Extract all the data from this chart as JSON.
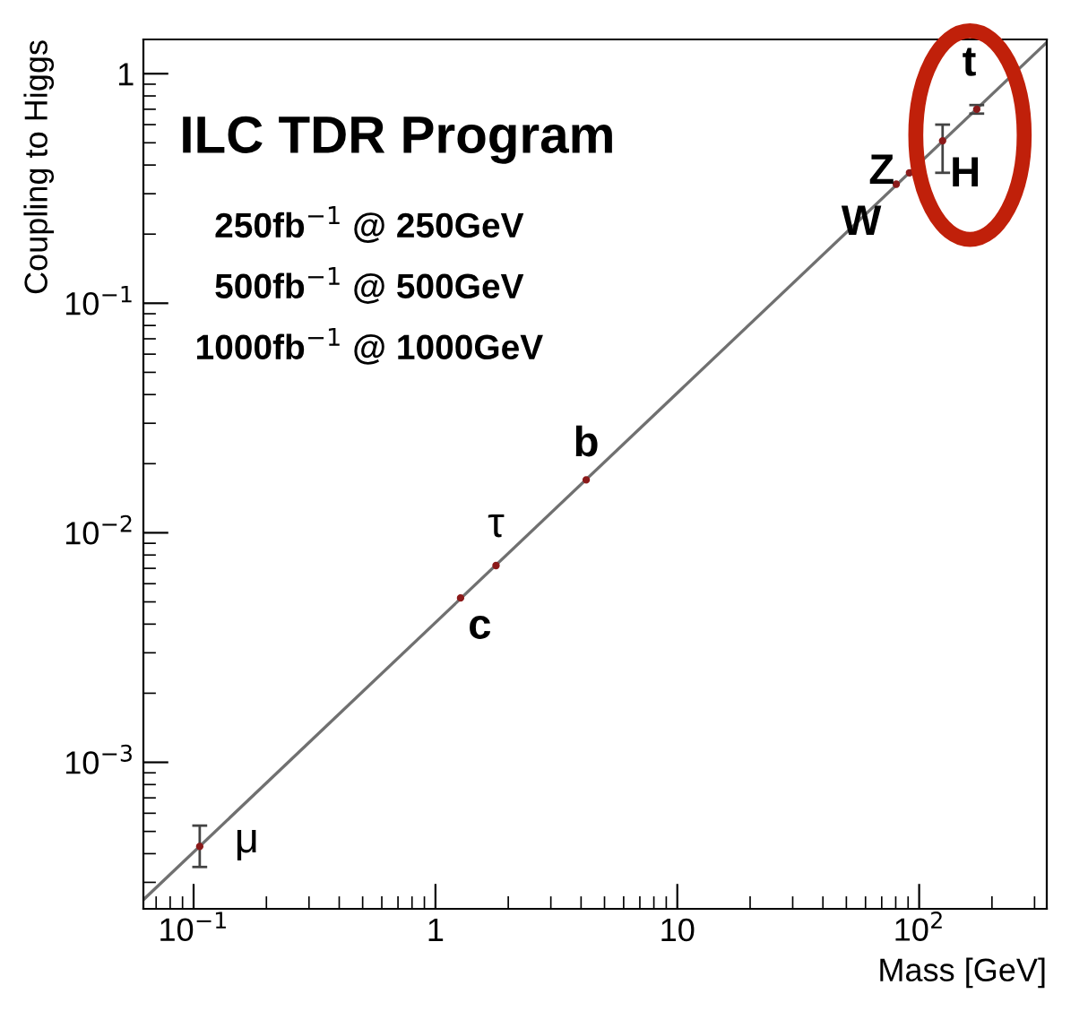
{
  "chart_data": {
    "type": "scatter",
    "xlabel": "Mass [GeV]",
    "ylabel": "Coupling to Higgs",
    "log": "xy",
    "grid": false,
    "xlim": [
      0.062,
      337
    ],
    "ylim": [
      0.00023,
      1.41
    ],
    "xticks": [
      {
        "value": 0.1,
        "label": "10$^{−1}$"
      },
      1,
      10,
      {
        "value": 100,
        "label": "10$^{2}$"
      }
    ],
    "yticks": [
      {
        "value": 0.001,
        "label": "10$^{−3}$"
      },
      {
        "value": 0.01,
        "label": "10$^{−2}$"
      },
      {
        "value": 0.1,
        "label": "10$^{−1}$"
      },
      1
    ],
    "series": [
      {
        "type": "line",
        "color": "#707070",
        "x": [
          0.062,
          337
        ],
        "values": [
          0.000252,
          1.37
        ]
      },
      {
        "marker": "circle",
        "color": "#8b1a1a",
        "x": [
          0.106,
          1.27,
          1.78,
          4.2,
          80.4,
          91.2,
          125,
          173
        ],
        "values": [
          0.00043,
          0.0052,
          0.0072,
          0.017,
          0.33,
          0.37,
          0.51,
          0.7
        ],
        "errors": [
          [
            0.00035,
            0.00053
          ],
          null,
          null,
          null,
          null,
          null,
          [
            0.37,
            0.6
          ],
          [
            0.67,
            0.73
          ]
        ]
      }
    ],
    "annotations": [
      "ILC TDR Program",
      "250fb$^{−1}$ @ 250GeV",
      "500fb$^{−1}$ @ 500GeV",
      "1000fb$^{−1}$ @ 1000GeV",
      {
        "text": "μ",
        "x": 0.106,
        "y": 0.00043
      },
      {
        "text": "c",
        "x": 1.27,
        "y": 0.0052
      },
      {
        "text": "τ",
        "x": 1.78,
        "y": 0.0072
      },
      {
        "text": "b",
        "x": 4.2,
        "y": 0.017
      },
      {
        "text": "W",
        "x": 80.4,
        "y": 0.33
      },
      {
        "text": "Z",
        "x": 91.2,
        "y": 0.37
      },
      {
        "text": "H",
        "x": 125,
        "y": 0.51
      },
      {
        "text": "t",
        "x": 173,
        "y": 0.7
      }
    ]
  }
}
